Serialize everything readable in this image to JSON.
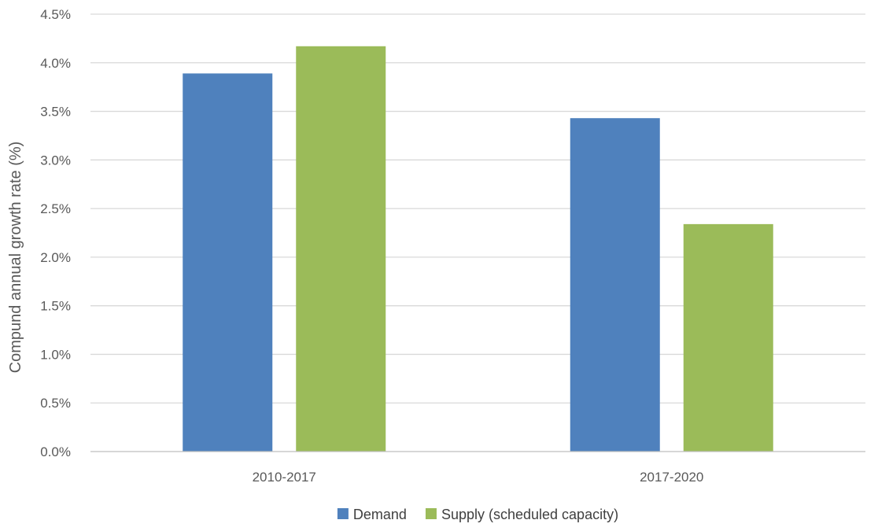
{
  "chart_data": {
    "type": "bar",
    "title": "",
    "xlabel": "",
    "ylabel": "Compund annual growth rate (%)",
    "categories": [
      "2010-2017",
      "2017-2020"
    ],
    "series": [
      {
        "name": "Demand",
        "values": [
          3.89,
          3.43
        ],
        "color": "#4f81bd"
      },
      {
        "name": "Supply (scheduled capacity)",
        "values": [
          4.17,
          2.34
        ],
        "color": "#9bbb59"
      }
    ],
    "ylim": [
      0,
      4.5
    ],
    "yticks": [
      0,
      0.5,
      1.0,
      1.5,
      2.0,
      2.5,
      3.0,
      3.5,
      4.0,
      4.5
    ],
    "ytick_labels": [
      "0.0%",
      "0.5%",
      "1.0%",
      "1.5%",
      "2.0%",
      "2.5%",
      "3.0%",
      "3.5%",
      "4.0%",
      "4.5%"
    ],
    "grid": true,
    "legend_position": "bottom"
  }
}
